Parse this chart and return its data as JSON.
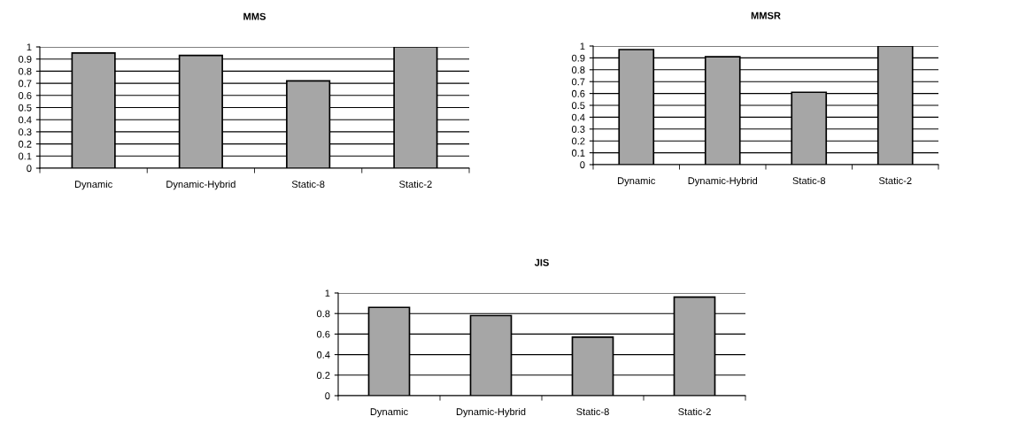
{
  "chart_data": [
    {
      "type": "bar",
      "title": "MMS",
      "categories": [
        "Dynamic",
        "Dynamic-Hybrid",
        "Static-8",
        "Static-2"
      ],
      "values": [
        0.95,
        0.93,
        0.72,
        1.0
      ],
      "color": "#a6a6a6",
      "ylim": [
        0,
        1
      ],
      "yticks": [
        0,
        0.1,
        0.2,
        0.3,
        0.4,
        0.5,
        0.6,
        0.7,
        0.8,
        0.9,
        1
      ],
      "grid": "y"
    },
    {
      "type": "bar",
      "title": "MMSR",
      "categories": [
        "Dynamic",
        "Dynamic-Hybrid",
        "Static-8",
        "Static-2"
      ],
      "values": [
        0.97,
        0.91,
        0.61,
        1.0
      ],
      "color": "#a6a6a6",
      "ylim": [
        0,
        1
      ],
      "yticks": [
        0,
        0.1,
        0.2,
        0.3,
        0.4,
        0.5,
        0.6,
        0.7,
        0.8,
        0.9,
        1
      ],
      "grid": "y"
    },
    {
      "type": "bar",
      "title": "JIS",
      "categories": [
        "Dynamic",
        "Dynamic-Hybrid",
        "Static-8",
        "Static-2"
      ],
      "values": [
        0.86,
        0.78,
        0.57,
        0.96
      ],
      "color": "#a6a6a6",
      "ylim": [
        0,
        1
      ],
      "yticks": [
        0,
        {
          "value": 0.2,
          "label": "0.2"
        },
        {
          "value": 0.4,
          "label": "0.4"
        },
        {
          "value": 0.6,
          "label": "0.6"
        },
        {
          "value": 0.8,
          "label": "0.8"
        },
        1
      ],
      "grid": "y"
    }
  ]
}
